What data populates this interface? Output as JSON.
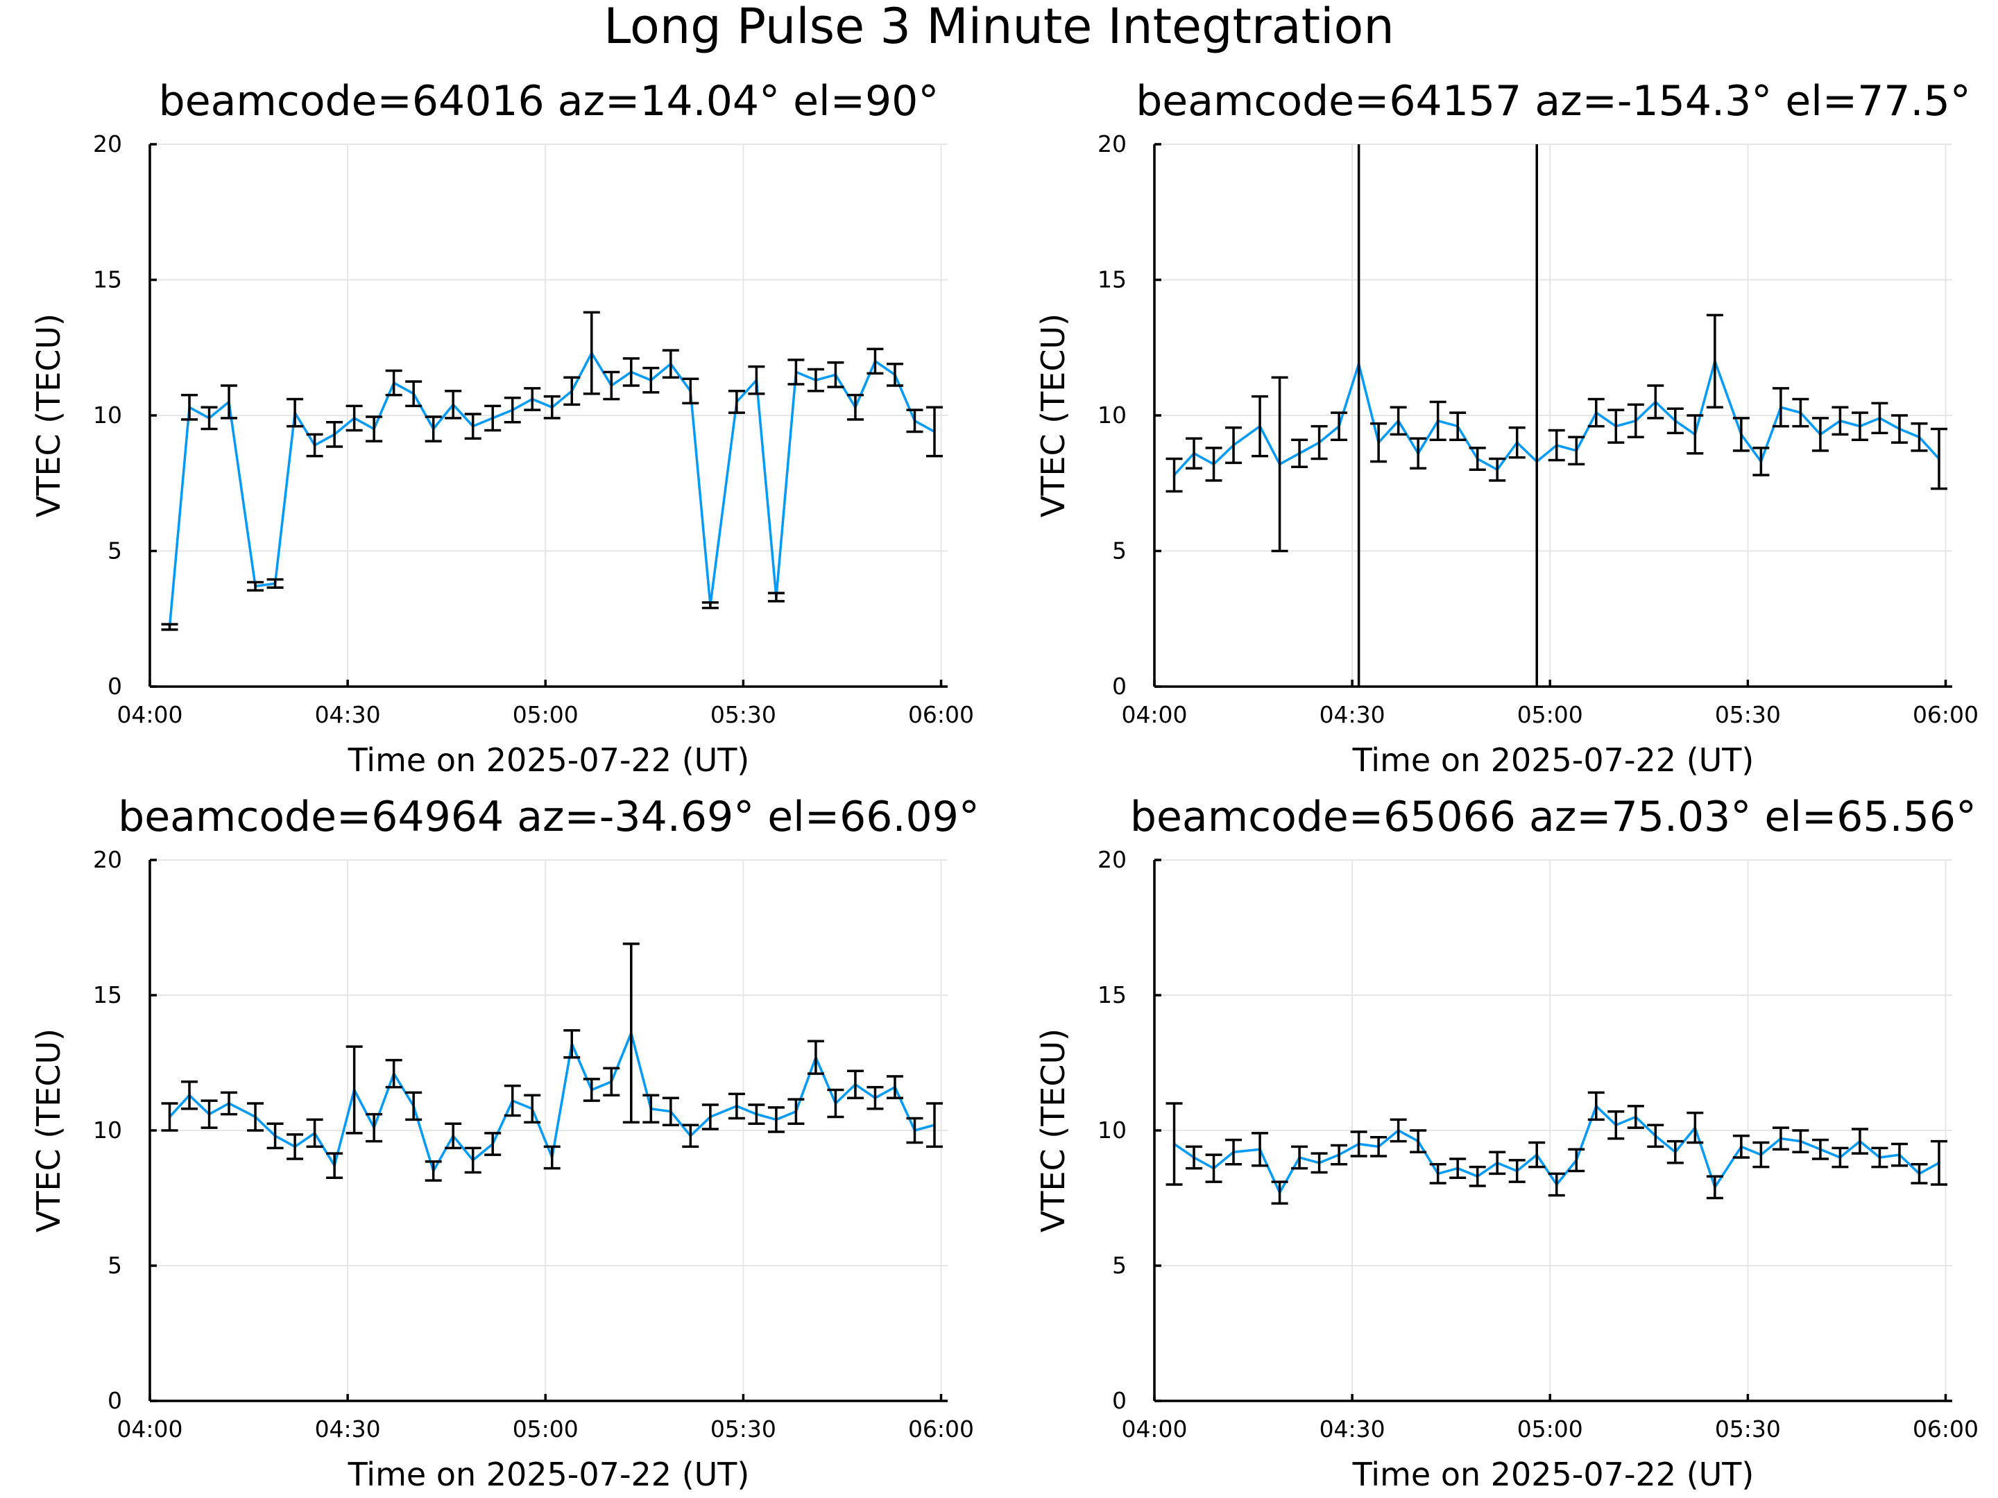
{
  "figure": {
    "title": "Long Pulse 3 Minute Integtration"
  },
  "chart_data": [
    {
      "type": "line",
      "title": "beamcode=64016 az=14.04° el=90°",
      "xlabel": "Time on 2025-07-22 (UT)",
      "ylabel": "VTEC (TECU)",
      "xlim": [
        "04:00",
        "06:01"
      ],
      "ylim": [
        0,
        20
      ],
      "xticks": [
        "04:00",
        "04:30",
        "05:00",
        "05:30",
        "06:00"
      ],
      "yticks": [
        "0",
        "5",
        "10",
        "15",
        "20"
      ],
      "grid": true,
      "errorbars": true,
      "x": [
        "04:03",
        "04:06",
        "04:09",
        "04:12",
        "04:16",
        "04:19",
        "04:22",
        "04:25",
        "04:28",
        "04:31",
        "04:34",
        "04:37",
        "04:40",
        "04:43",
        "04:46",
        "04:49",
        "04:52",
        "04:55",
        "04:58",
        "05:01",
        "05:04",
        "05:07",
        "05:10",
        "05:13",
        "05:16",
        "05:19",
        "05:22",
        "05:25",
        "05:29",
        "05:32",
        "05:35",
        "05:38",
        "05:41",
        "05:44",
        "05:47",
        "05:50",
        "05:53",
        "05:56",
        "05:59"
      ],
      "y": [
        2.2,
        10.3,
        9.9,
        10.5,
        3.7,
        3.8,
        10.1,
        8.9,
        9.3,
        9.9,
        9.5,
        11.2,
        10.8,
        9.5,
        10.4,
        9.6,
        9.9,
        10.2,
        10.6,
        10.3,
        10.9,
        12.3,
        11.1,
        11.6,
        11.3,
        11.9,
        10.9,
        3.0,
        10.5,
        11.3,
        3.3,
        11.6,
        11.3,
        11.5,
        10.3,
        12.0,
        11.5,
        9.8,
        9.4
      ],
      "err": [
        0.1,
        0.45,
        0.4,
        0.6,
        0.15,
        0.15,
        0.5,
        0.4,
        0.45,
        0.45,
        0.45,
        0.45,
        0.45,
        0.45,
        0.5,
        0.45,
        0.45,
        0.45,
        0.4,
        0.4,
        0.5,
        1.5,
        0.5,
        0.5,
        0.45,
        0.5,
        0.45,
        0.1,
        0.4,
        0.5,
        0.15,
        0.45,
        0.4,
        0.45,
        0.45,
        0.45,
        0.4,
        0.4,
        0.9
      ]
    },
    {
      "type": "line",
      "title": "beamcode=64157 az=-154.3° el=77.5°",
      "xlabel": "Time on 2025-07-22 (UT)",
      "ylabel": "VTEC (TECU)",
      "xlim": [
        "04:00",
        "06:01"
      ],
      "ylim": [
        0,
        20
      ],
      "xticks": [
        "04:00",
        "04:30",
        "05:00",
        "05:30",
        "06:00"
      ],
      "yticks": [
        "0",
        "5",
        "10",
        "15",
        "20"
      ],
      "grid": true,
      "errorbars": true,
      "x": [
        "04:03",
        "04:06",
        "04:09",
        "04:12",
        "04:16",
        "04:19",
        "04:22",
        "04:25",
        "04:28",
        "04:31",
        "04:34",
        "04:37",
        "04:40",
        "04:43",
        "04:46",
        "04:49",
        "04:52",
        "04:55",
        "04:58",
        "05:01",
        "05:04",
        "05:07",
        "05:10",
        "05:13",
        "05:16",
        "05:19",
        "05:22",
        "05:25",
        "05:29",
        "05:32",
        "05:35",
        "05:38",
        "05:41",
        "05:44",
        "05:47",
        "05:50",
        "05:53",
        "05:56",
        "05:59"
      ],
      "y": [
        7.8,
        8.6,
        8.2,
        8.9,
        9.6,
        8.2,
        8.6,
        9.0,
        9.6,
        11.9,
        9.0,
        9.8,
        8.6,
        9.8,
        9.6,
        8.4,
        8.0,
        9.0,
        8.3,
        8.9,
        8.7,
        10.1,
        9.6,
        9.8,
        10.5,
        9.8,
        9.3,
        12.0,
        9.3,
        8.3,
        10.3,
        10.1,
        9.3,
        9.8,
        9.6,
        9.9,
        9.5,
        9.2,
        8.4
      ],
      "err": [
        0.6,
        0.55,
        0.6,
        0.65,
        1.1,
        3.2,
        0.5,
        0.6,
        0.5,
        12.5,
        0.7,
        0.5,
        0.55,
        0.7,
        0.5,
        0.4,
        0.4,
        0.55,
        11.8,
        0.55,
        0.5,
        0.5,
        0.6,
        0.6,
        0.6,
        0.45,
        0.7,
        1.7,
        0.6,
        0.5,
        0.7,
        0.5,
        0.6,
        0.5,
        0.5,
        0.55,
        0.5,
        0.5,
        1.1
      ]
    },
    {
      "type": "line",
      "title": "beamcode=64964 az=-34.69° el=66.09°",
      "xlabel": "Time on 2025-07-22 (UT)",
      "ylabel": "VTEC (TECU)",
      "xlim": [
        "04:00",
        "06:01"
      ],
      "ylim": [
        0,
        20
      ],
      "xticks": [
        "04:00",
        "04:30",
        "05:00",
        "05:30",
        "06:00"
      ],
      "yticks": [
        "0",
        "5",
        "10",
        "15",
        "20"
      ],
      "grid": true,
      "errorbars": true,
      "x": [
        "04:03",
        "04:06",
        "04:09",
        "04:12",
        "04:16",
        "04:19",
        "04:22",
        "04:25",
        "04:28",
        "04:31",
        "04:34",
        "04:37",
        "04:40",
        "04:43",
        "04:46",
        "04:49",
        "04:52",
        "04:55",
        "04:58",
        "05:01",
        "05:04",
        "05:07",
        "05:10",
        "05:13",
        "05:16",
        "05:19",
        "05:22",
        "05:25",
        "05:29",
        "05:32",
        "05:35",
        "05:38",
        "05:41",
        "05:44",
        "05:47",
        "05:50",
        "05:53",
        "05:56",
        "05:59"
      ],
      "y": [
        10.5,
        11.3,
        10.6,
        11.0,
        10.5,
        9.8,
        9.4,
        9.9,
        8.7,
        11.5,
        10.1,
        12.1,
        10.9,
        8.5,
        9.8,
        8.9,
        9.5,
        11.1,
        10.8,
        9.0,
        13.2,
        11.5,
        11.8,
        13.6,
        10.8,
        10.7,
        9.8,
        10.5,
        10.9,
        10.6,
        10.4,
        10.7,
        12.7,
        11.0,
        11.7,
        11.2,
        11.6,
        10.0,
        10.2
      ],
      "err": [
        0.5,
        0.5,
        0.5,
        0.4,
        0.5,
        0.45,
        0.45,
        0.5,
        0.45,
        1.6,
        0.5,
        0.5,
        0.5,
        0.35,
        0.45,
        0.45,
        0.4,
        0.55,
        0.5,
        0.4,
        0.5,
        0.4,
        0.5,
        3.3,
        0.5,
        0.5,
        0.4,
        0.45,
        0.45,
        0.35,
        0.45,
        0.45,
        0.6,
        0.5,
        0.5,
        0.4,
        0.4,
        0.45,
        0.8
      ]
    },
    {
      "type": "line",
      "title": "beamcode=65066 az=75.03° el=65.56°",
      "xlabel": "Time on 2025-07-22 (UT)",
      "ylabel": "VTEC (TECU)",
      "xlim": [
        "04:00",
        "06:01"
      ],
      "ylim": [
        0,
        20
      ],
      "xticks": [
        "04:00",
        "04:30",
        "05:00",
        "05:30",
        "06:00"
      ],
      "yticks": [
        "0",
        "5",
        "10",
        "15",
        "20"
      ],
      "grid": true,
      "errorbars": true,
      "x": [
        "04:03",
        "04:06",
        "04:09",
        "04:12",
        "04:16",
        "04:19",
        "04:22",
        "04:25",
        "04:28",
        "04:31",
        "04:34",
        "04:37",
        "04:40",
        "04:43",
        "04:46",
        "04:49",
        "04:52",
        "04:55",
        "04:58",
        "05:01",
        "05:04",
        "05:07",
        "05:10",
        "05:13",
        "05:16",
        "05:19",
        "05:22",
        "05:25",
        "05:29",
        "05:32",
        "05:35",
        "05:38",
        "05:41",
        "05:44",
        "05:47",
        "05:50",
        "05:53",
        "05:56",
        "05:59"
      ],
      "y": [
        9.5,
        9.0,
        8.6,
        9.2,
        9.3,
        7.7,
        9.0,
        8.8,
        9.1,
        9.5,
        9.4,
        10.0,
        9.6,
        8.4,
        8.6,
        8.3,
        8.8,
        8.5,
        9.1,
        8.0,
        8.9,
        10.9,
        10.2,
        10.5,
        9.8,
        9.2,
        10.1,
        7.9,
        9.4,
        9.1,
        9.7,
        9.6,
        9.3,
        9.0,
        9.6,
        9.0,
        9.1,
        8.4,
        8.8
      ],
      "err": [
        1.5,
        0.4,
        0.5,
        0.45,
        0.6,
        0.4,
        0.4,
        0.35,
        0.35,
        0.45,
        0.35,
        0.4,
        0.4,
        0.35,
        0.35,
        0.35,
        0.4,
        0.4,
        0.45,
        0.4,
        0.4,
        0.5,
        0.5,
        0.4,
        0.4,
        0.4,
        0.55,
        0.4,
        0.4,
        0.45,
        0.4,
        0.4,
        0.35,
        0.35,
        0.45,
        0.35,
        0.4,
        0.35,
        0.8
      ]
    }
  ]
}
